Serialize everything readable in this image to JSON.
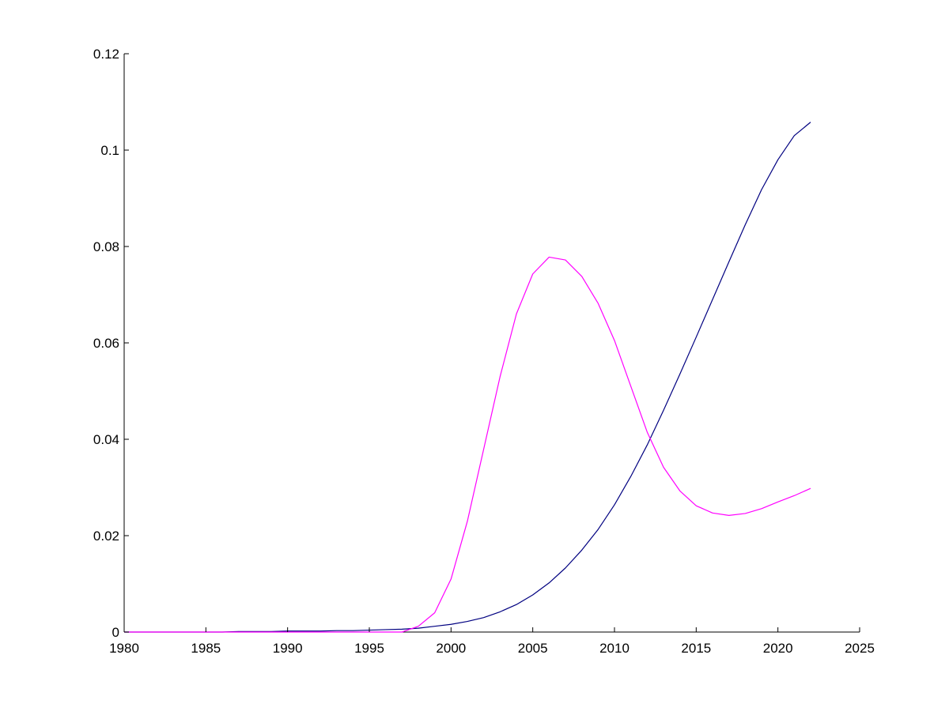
{
  "chart_data": {
    "type": "line",
    "title": "",
    "xlabel": "",
    "ylabel": "",
    "xlim": [
      1980,
      2025
    ],
    "ylim": [
      0,
      0.12
    ],
    "x_ticks": [
      1980,
      1985,
      1990,
      1995,
      2000,
      2005,
      2010,
      2015,
      2020,
      2025
    ],
    "x_tick_labels": [
      "1980",
      "1985",
      "1990",
      "1995",
      "2000",
      "2005",
      "2010",
      "2015",
      "2020",
      "2025"
    ],
    "y_ticks": [
      0,
      0.02,
      0.04,
      0.06,
      0.08,
      0.1,
      0.12
    ],
    "y_tick_labels": [
      "0",
      "0.02",
      "0.04",
      "0.06",
      "0.08",
      "0.1",
      "0.12"
    ],
    "grid": false,
    "legend": "none",
    "series": [
      {
        "color": "#000080",
        "x": [
          1980,
          1981,
          1982,
          1983,
          1984,
          1985,
          1986,
          1987,
          1988,
          1989,
          1990,
          1991,
          1992,
          1993,
          1994,
          1995,
          1996,
          1997,
          1998,
          1999,
          2000,
          2001,
          2002,
          2003,
          2004,
          2005,
          2006,
          2007,
          2008,
          2009,
          2010,
          2011,
          2012,
          2013,
          2014,
          2015,
          2016,
          2017,
          2018,
          2019,
          2020,
          2021,
          2022
        ],
        "y": [
          0,
          0,
          0,
          0,
          0,
          0,
          0,
          0.0001,
          0.0001,
          0.0001,
          0.0002,
          0.0002,
          0.0002,
          0.0003,
          0.0003,
          0.0004,
          0.0005,
          0.0006,
          0.0008,
          0.0012,
          0.0016,
          0.0022,
          0.003,
          0.0042,
          0.0057,
          0.0077,
          0.0102,
          0.0133,
          0.017,
          0.0213,
          0.0264,
          0.0323,
          0.0388,
          0.046,
          0.0535,
          0.0612,
          0.069,
          0.0768,
          0.0845,
          0.0918,
          0.098,
          0.103,
          0.1058
        ]
      },
      {
        "color": "#ff00ff",
        "x": [
          1980,
          1981,
          1982,
          1983,
          1984,
          1985,
          1986,
          1987,
          1988,
          1989,
          1990,
          1991,
          1992,
          1993,
          1994,
          1995,
          1996,
          1997,
          1998,
          1999,
          2000,
          2001,
          2002,
          2003,
          2004,
          2005,
          2006,
          2007,
          2008,
          2009,
          2010,
          2011,
          2012,
          2013,
          2014,
          2015,
          2016,
          2017,
          2018,
          2019,
          2020,
          2021,
          2022
        ],
        "y": [
          0,
          0,
          0,
          0,
          0,
          0,
          0,
          0,
          0,
          0,
          0,
          0,
          0,
          0,
          0,
          0,
          0,
          0,
          0.0012,
          0.004,
          0.011,
          0.023,
          0.038,
          0.053,
          0.066,
          0.0743,
          0.0778,
          0.0772,
          0.0738,
          0.0682,
          0.0605,
          0.051,
          0.0415,
          0.0342,
          0.0293,
          0.0262,
          0.0247,
          0.0242,
          0.0246,
          0.0256,
          0.027,
          0.0283,
          0.0298
        ]
      }
    ]
  }
}
